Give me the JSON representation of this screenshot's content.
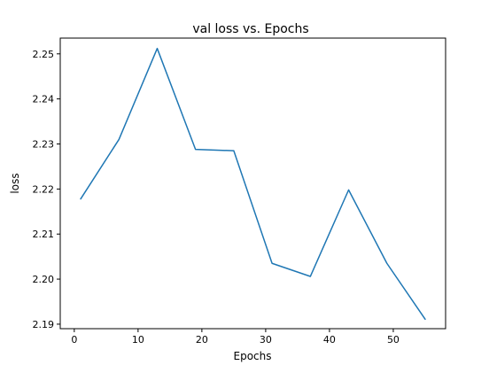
{
  "chart_data": {
    "type": "line",
    "title": "val loss vs. Epochs",
    "xlabel": "Epochs",
    "ylabel": "loss",
    "xlim": [
      -2.2,
      58.2
    ],
    "ylim": [
      2.189,
      2.2535
    ],
    "xticks": [
      0,
      10,
      20,
      30,
      40,
      50
    ],
    "yticks": [
      2.19,
      2.2,
      2.21,
      2.22,
      2.23,
      2.24,
      2.25
    ],
    "ytick_labels": [
      "2.19",
      "2.20",
      "2.21",
      "2.22",
      "2.23",
      "2.24",
      "2.25"
    ],
    "grid": false,
    "legend": "none",
    "series": [
      {
        "color": "#1f77b4",
        "x": [
          1,
          7,
          13,
          19,
          25,
          31,
          37,
          43,
          49,
          55
        ],
        "y": [
          2.2178,
          2.231,
          2.2512,
          2.2288,
          2.2285,
          2.2035,
          2.2006,
          2.2198,
          2.2035,
          2.1911
        ]
      }
    ]
  }
}
